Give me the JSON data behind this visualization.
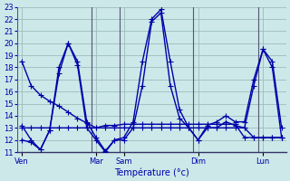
{
  "xlabel": "Température (°c)",
  "bg_color": "#cce8e8",
  "grid_color": "#9bbcbc",
  "line_color": "#0000aa",
  "ylim": [
    11,
    23
  ],
  "yticks": [
    11,
    12,
    13,
    14,
    15,
    16,
    17,
    18,
    19,
    20,
    21,
    22,
    23
  ],
  "x_day_labels": [
    "Ven",
    "Mar",
    "Sam",
    "Dim",
    "Lun"
  ],
  "x_day_positions": [
    0.0,
    8.0,
    11.0,
    19.0,
    26.0
  ],
  "n_points": 29,
  "series1": [
    18.5,
    16.5,
    15.7,
    15.2,
    14.8,
    14.3,
    13.8,
    13.4,
    13.0,
    13.2,
    13.2,
    13.3,
    13.3,
    13.3,
    13.3,
    13.3,
    13.3,
    13.3,
    13.3,
    13.3,
    13.3,
    13.3,
    13.3,
    13.3,
    12.2,
    12.2,
    12.2,
    12.2,
    12.2
  ],
  "series2": [
    13.0,
    13.0,
    13.0,
    13.0,
    13.0,
    13.0,
    13.0,
    13.0,
    13.0,
    13.0,
    13.0,
    13.0,
    13.0,
    13.0,
    13.0,
    13.0,
    13.0,
    13.0,
    13.0,
    13.0,
    13.0,
    13.0,
    13.0,
    13.0,
    13.0,
    12.2,
    12.2,
    12.2,
    12.2
  ],
  "series3": [
    12.0,
    11.8,
    11.2,
    12.8,
    18.0,
    20.0,
    18.5,
    13.5,
    12.2,
    11.1,
    12.0,
    12.2,
    13.5,
    18.5,
    22.0,
    22.8,
    18.5,
    14.5,
    13.0,
    12.0,
    13.2,
    13.5,
    14.0,
    13.5,
    13.5,
    17.0,
    19.5,
    18.5,
    13.0
  ],
  "series4": [
    13.2,
    12.0,
    11.2,
    12.8,
    17.5,
    20.0,
    18.2,
    13.0,
    12.0,
    11.0,
    12.0,
    12.0,
    13.0,
    16.5,
    21.8,
    22.5,
    16.5,
    13.8,
    13.0,
    12.0,
    13.0,
    13.0,
    13.5,
    13.2,
    13.0,
    16.5,
    19.5,
    18.0,
    12.2
  ],
  "marker": "+",
  "markersize": 4,
  "linewidth": 1.0
}
